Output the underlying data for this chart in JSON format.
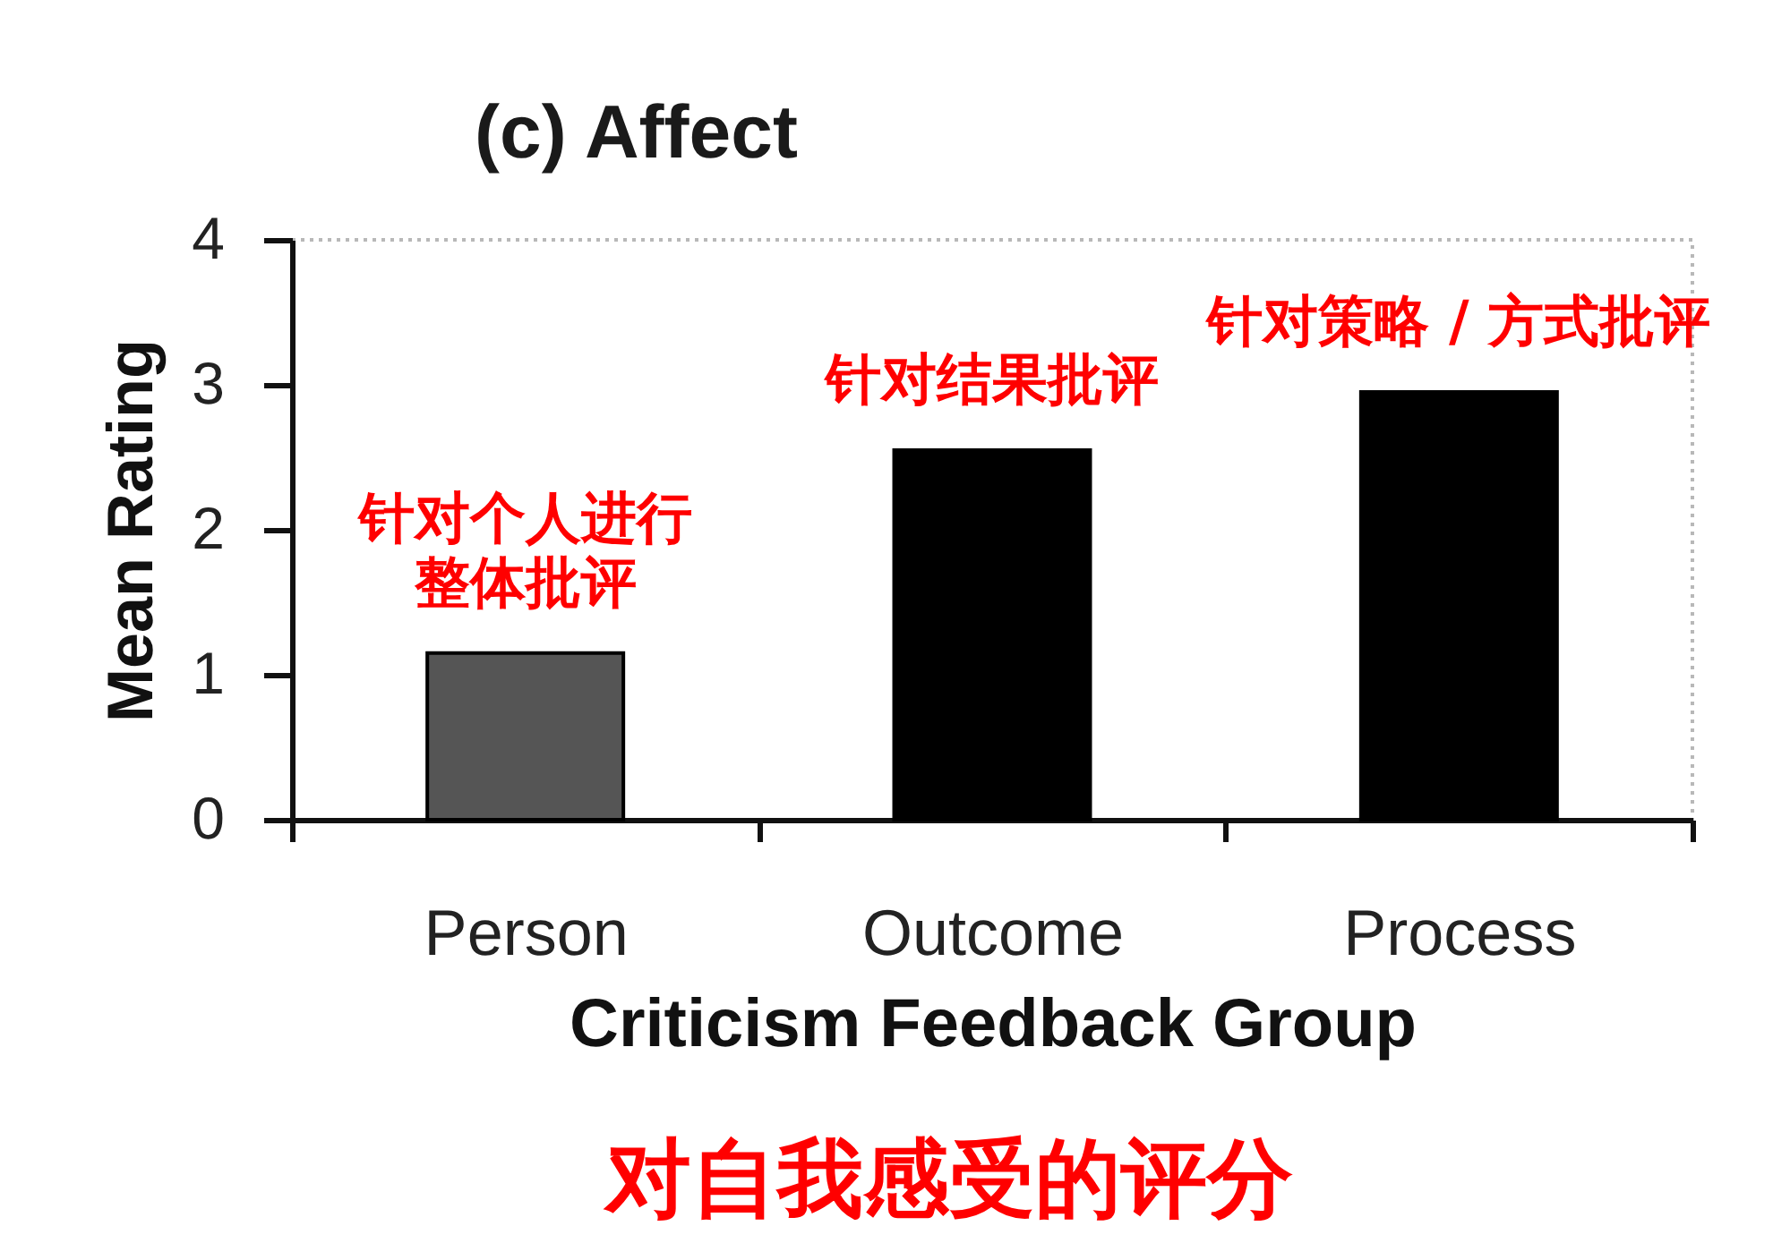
{
  "chart_data": {
    "type": "bar",
    "title": "(c) Affect",
    "xlabel": "Criticism Feedback Group",
    "ylabel": "Mean Rating",
    "categories": [
      "Person",
      "Outcome",
      "Process"
    ],
    "values": [
      1.15,
      2.55,
      2.95
    ],
    "colors": [
      "#555555",
      "#000000",
      "#000000"
    ],
    "ylim": [
      0,
      4
    ],
    "yticks": [
      0,
      1,
      2,
      3,
      4
    ],
    "annotations": [
      {
        "text": "针对个人进行整体批评",
        "x": "Person",
        "y": 1.15
      },
      {
        "text": "针对结果批评",
        "x": "Outcome",
        "y": 2.55
      },
      {
        "text": "针对策略 / 方式批评",
        "x": "Process",
        "y": 2.95
      },
      "对自我感受的评分"
    ]
  }
}
